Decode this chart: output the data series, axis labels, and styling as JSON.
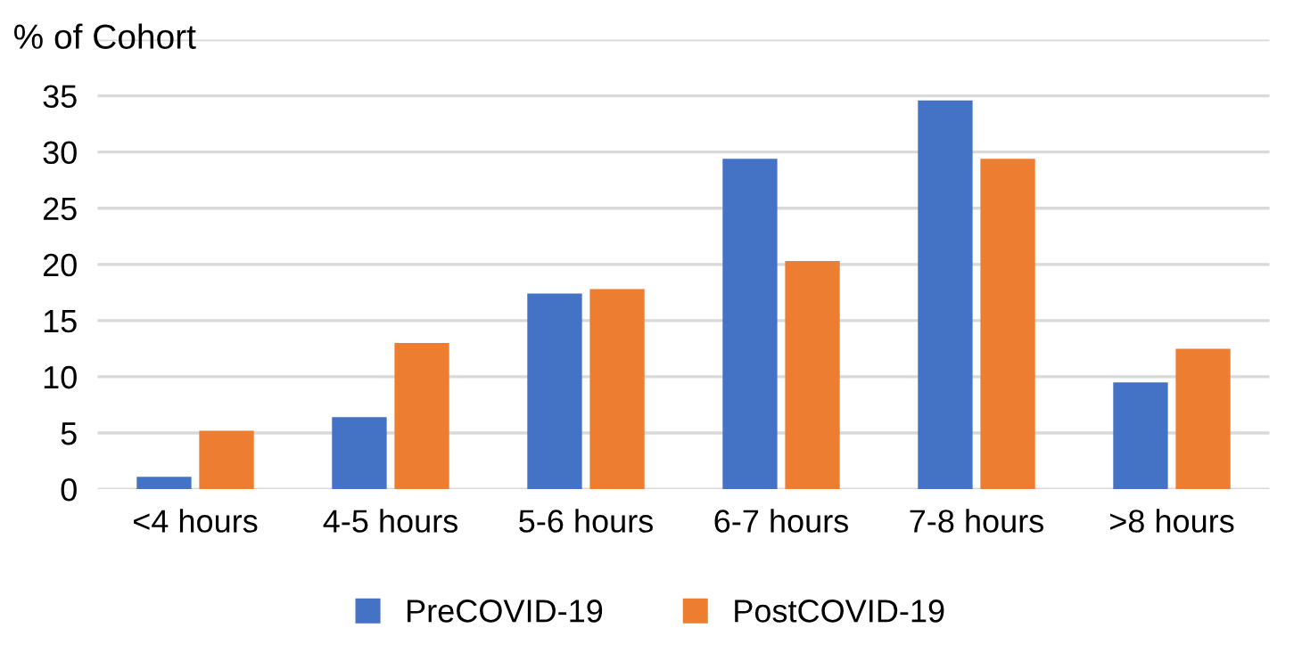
{
  "chart_data": {
    "type": "bar",
    "ylabel": "% of Cohort",
    "categories": [
      "<4 hours",
      "4-5 hours",
      "5-6 hours",
      "6-7 hours",
      "7-8 hours",
      ">8 hours"
    ],
    "series": [
      {
        "name": "PreCOVID-19",
        "color": "#4472c4",
        "values": [
          1.1,
          6.4,
          17.4,
          29.4,
          34.6,
          9.5
        ]
      },
      {
        "name": "PostCOVID-19",
        "color": "#ed7d31",
        "values": [
          5.2,
          13.0,
          17.8,
          20.3,
          29.4,
          12.5
        ]
      }
    ],
    "ylim": [
      0,
      40
    ],
    "yticks": [
      0,
      5,
      10,
      15,
      20,
      25,
      30,
      35,
      {
        "value": 40,
        "label": null
      }
    ],
    "grid": "y",
    "legend": "bottom"
  }
}
